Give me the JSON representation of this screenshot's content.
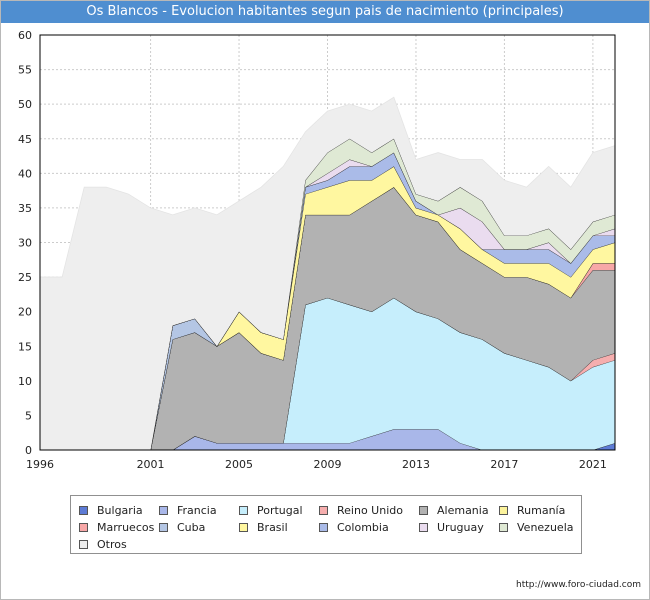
{
  "chart_data": {
    "type": "area",
    "stacked": true,
    "title": "Os Blancos - Evolucion habitantes segun pais de nacimiento (principales)",
    "xlabel": "",
    "ylabel": "",
    "xlim": [
      1996,
      2022
    ],
    "ylim": [
      0,
      60
    ],
    "x_ticks": [
      "1996",
      "2001",
      "2005",
      "2009",
      "2013",
      "2017",
      "2021"
    ],
    "y_ticks": [
      "0",
      "5",
      "10",
      "15",
      "20",
      "25",
      "30",
      "35",
      "40",
      "45",
      "50",
      "55",
      "60"
    ],
    "grid": "vertical and horizontal",
    "legend_position": "bottom",
    "x": [
      1996,
      1997,
      1998,
      1999,
      2000,
      2001,
      2002,
      2003,
      2004,
      2005,
      2006,
      2007,
      2008,
      2009,
      2010,
      2011,
      2012,
      2013,
      2014,
      2015,
      2016,
      2017,
      2018,
      2019,
      2020,
      2021,
      2022
    ],
    "series": [
      {
        "name": "Bulgaria",
        "color": "#5d7bd5",
        "values": [
          0,
          0,
          0,
          0,
          0,
          0,
          0,
          0,
          0,
          0,
          0,
          0,
          0,
          0,
          0,
          0,
          0,
          0,
          0,
          0,
          0,
          0,
          0,
          0,
          0,
          0,
          1
        ]
      },
      {
        "name": "Francia",
        "color": "#a9b7e9",
        "values": [
          0,
          0,
          0,
          0,
          0,
          0,
          0,
          2,
          1,
          1,
          1,
          1,
          1,
          1,
          1,
          2,
          3,
          3,
          3,
          1,
          0,
          0,
          0,
          0,
          0,
          0,
          0
        ]
      },
      {
        "name": "Portugal",
        "color": "#c6eefc",
        "values": [
          0,
          0,
          0,
          0,
          0,
          0,
          0,
          0,
          0,
          0,
          0,
          0,
          20,
          21,
          20,
          18,
          19,
          17,
          16,
          16,
          16,
          14,
          13,
          12,
          10,
          12,
          12
        ]
      },
      {
        "name": "Reino Unido",
        "color": "#f6aeae",
        "values": [
          0,
          0,
          0,
          0,
          0,
          0,
          0,
          0,
          0,
          0,
          0,
          0,
          0,
          0,
          0,
          0,
          0,
          0,
          0,
          0,
          0,
          0,
          0,
          0,
          0,
          1,
          1
        ]
      },
      {
        "name": "Alemania",
        "color": "#b2b2b2",
        "values": [
          0,
          0,
          0,
          0,
          0,
          0,
          16,
          15,
          14,
          16,
          13,
          12,
          13,
          12,
          13,
          16,
          16,
          14,
          14,
          12,
          11,
          11,
          12,
          12,
          12,
          13,
          12
        ]
      },
      {
        "name": "Rumanía",
        "color": "#fcf39c",
        "values": [
          0,
          0,
          0,
          0,
          0,
          0,
          0,
          0,
          0,
          0,
          0,
          0,
          0,
          0,
          0,
          0,
          0,
          0,
          0,
          0,
          0,
          0,
          0,
          0,
          0,
          0,
          0
        ]
      },
      {
        "name": "Marruecos",
        "color": "#f7a7a7",
        "values": [
          0,
          0,
          0,
          0,
          0,
          0,
          0,
          0,
          0,
          0,
          0,
          0,
          0,
          0,
          0,
          0,
          0,
          0,
          0,
          0,
          0,
          0,
          0,
          0,
          0,
          1,
          1
        ]
      },
      {
        "name": "Cuba",
        "color": "#b4c6e4",
        "values": [
          0,
          0,
          0,
          0,
          0,
          0,
          2,
          2,
          0,
          0,
          0,
          0,
          0,
          0,
          0,
          0,
          0,
          0,
          0,
          0,
          0,
          0,
          0,
          0,
          0,
          0,
          0
        ]
      },
      {
        "name": "Brasil",
        "color": "#fff7a0",
        "values": [
          0,
          0,
          0,
          0,
          0,
          0,
          0,
          0,
          0,
          3,
          3,
          3,
          3,
          4,
          5,
          3,
          3,
          1,
          1,
          3,
          2,
          2,
          2,
          3,
          3,
          2,
          3
        ]
      },
      {
        "name": "Colombia",
        "color": "#aabbe8",
        "values": [
          0,
          0,
          0,
          0,
          0,
          0,
          0,
          0,
          0,
          0,
          0,
          0,
          1,
          1,
          2,
          2,
          2,
          1,
          0,
          0,
          0,
          2,
          2,
          2,
          2,
          2,
          1
        ]
      },
      {
        "name": "Uruguay",
        "color": "#eadcef",
        "values": [
          0,
          0,
          0,
          0,
          0,
          0,
          0,
          0,
          0,
          0,
          0,
          0,
          0,
          1,
          1,
          0,
          0,
          0,
          0,
          3,
          4,
          0,
          0,
          1,
          0,
          0,
          1
        ]
      },
      {
        "name": "Venezuela",
        "color": "#dfe9d4",
        "values": [
          0,
          0,
          0,
          0,
          0,
          0,
          0,
          0,
          0,
          0,
          0,
          0,
          1,
          3,
          3,
          2,
          2,
          1,
          2,
          3,
          3,
          2,
          2,
          2,
          2,
          2,
          2
        ]
      },
      {
        "name": "Otros",
        "color": "#eeeeee",
        "values": [
          25,
          25,
          38,
          38,
          37,
          35,
          16,
          16,
          19,
          16,
          21,
          25,
          7,
          6,
          5,
          6,
          6,
          5,
          7,
          4,
          6,
          8,
          7,
          9,
          9,
          10,
          10
        ]
      }
    ]
  },
  "legend": {
    "items": [
      {
        "label": "Bulgaria",
        "color": "#5d7bd5"
      },
      {
        "label": "Francia",
        "color": "#a9b7e9"
      },
      {
        "label": "Portugal",
        "color": "#c6eefc"
      },
      {
        "label": "Reino Unido",
        "color": "#f6aeae"
      },
      {
        "label": "Alemania",
        "color": "#b2b2b2"
      },
      {
        "label": "Rumanía",
        "color": "#fcf39c"
      },
      {
        "label": "Marruecos",
        "color": "#f7a7a7"
      },
      {
        "label": "Cuba",
        "color": "#b4c6e4"
      },
      {
        "label": "Brasil",
        "color": "#fff7a0"
      },
      {
        "label": "Colombia",
        "color": "#aabbe8"
      },
      {
        "label": "Uruguay",
        "color": "#eadcef"
      },
      {
        "label": "Venezuela",
        "color": "#dfe9d4"
      },
      {
        "label": "Otros",
        "color": "#eeeeee"
      }
    ]
  },
  "footer": {
    "url": "http://www.foro-ciudad.com"
  },
  "colors": {
    "title_bar": "#4f8ed0",
    "grid": "#cccccc",
    "stroke": "#000000"
  }
}
